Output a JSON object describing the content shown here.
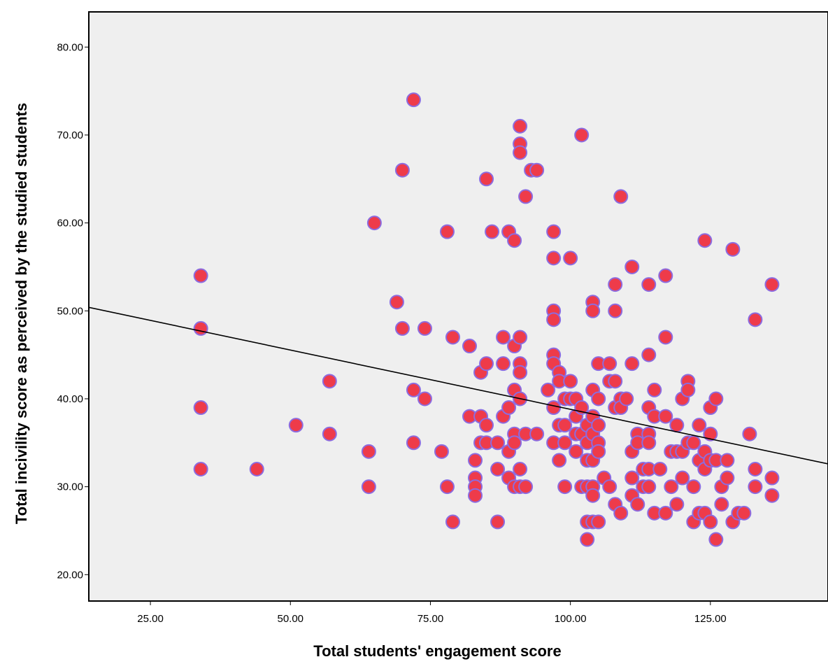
{
  "chart_data": {
    "type": "scatter",
    "title": "",
    "xlabel": "Total students' engagement score",
    "ylabel": "Total incivility score as perceived by the studied students",
    "xlim": [
      14,
      146
    ],
    "ylim": [
      17,
      84
    ],
    "x_ticks": [
      "25.00",
      "50.00",
      "75.00",
      "100.00",
      "125.00"
    ],
    "y_ticks": [
      "20.00",
      "30.00",
      "40.00",
      "50.00",
      "60.00",
      "70.00",
      "80.00"
    ],
    "x_tick_values": [
      25,
      50,
      75,
      100,
      125
    ],
    "y_tick_values": [
      20,
      30,
      40,
      50,
      60,
      70,
      80
    ],
    "grid": false,
    "point_color": "#ee3b4a",
    "point_edge_color": "#8c6ce0",
    "plot_background": "#efefef",
    "fit_line": {
      "x": [
        14,
        146
      ],
      "y": [
        50.4,
        32.6
      ],
      "color": "#000000"
    },
    "points": [
      [
        34,
        54
      ],
      [
        34,
        48
      ],
      [
        34,
        39
      ],
      [
        34,
        32
      ],
      [
        44,
        32
      ],
      [
        51,
        37
      ],
      [
        57,
        42
      ],
      [
        57,
        36
      ],
      [
        64,
        34
      ],
      [
        64,
        30
      ],
      [
        65,
        60
      ],
      [
        69,
        51
      ],
      [
        70,
        66
      ],
      [
        70,
        48
      ],
      [
        72,
        74
      ],
      [
        72,
        41
      ],
      [
        72,
        35
      ],
      [
        74,
        48
      ],
      [
        74,
        40
      ],
      [
        77,
        34
      ],
      [
        78,
        59
      ],
      [
        78,
        30
      ],
      [
        79,
        47
      ],
      [
        79,
        26
      ],
      [
        82,
        46
      ],
      [
        82,
        38
      ],
      [
        83,
        33
      ],
      [
        83,
        31
      ],
      [
        83,
        30
      ],
      [
        83,
        29
      ],
      [
        84,
        43
      ],
      [
        84,
        38
      ],
      [
        84,
        35
      ],
      [
        85,
        65
      ],
      [
        85,
        44
      ],
      [
        85,
        37
      ],
      [
        85,
        35
      ],
      [
        86,
        59
      ],
      [
        87,
        35
      ],
      [
        87,
        32
      ],
      [
        87,
        26
      ],
      [
        88,
        47
      ],
      [
        88,
        44
      ],
      [
        88,
        38
      ],
      [
        89,
        59
      ],
      [
        89,
        39
      ],
      [
        89,
        34
      ],
      [
        89,
        31
      ],
      [
        90,
        58
      ],
      [
        90,
        46
      ],
      [
        90,
        41
      ],
      [
        90,
        36
      ],
      [
        90,
        35
      ],
      [
        90,
        30
      ],
      [
        91,
        71
      ],
      [
        91,
        69
      ],
      [
        91,
        68
      ],
      [
        91,
        47
      ],
      [
        91,
        44
      ],
      [
        91,
        43
      ],
      [
        91,
        40
      ],
      [
        91,
        32
      ],
      [
        91,
        30
      ],
      [
        92,
        63
      ],
      [
        92,
        36
      ],
      [
        92,
        30
      ],
      [
        93,
        66
      ],
      [
        94,
        66
      ],
      [
        94,
        36
      ],
      [
        96,
        41
      ],
      [
        97,
        59
      ],
      [
        97,
        56
      ],
      [
        97,
        50
      ],
      [
        97,
        49
      ],
      [
        97,
        45
      ],
      [
        97,
        44
      ],
      [
        97,
        39
      ],
      [
        97,
        35
      ],
      [
        98,
        43
      ],
      [
        98,
        42
      ],
      [
        98,
        37
      ],
      [
        98,
        33
      ],
      [
        99,
        40
      ],
      [
        99,
        37
      ],
      [
        99,
        35
      ],
      [
        99,
        30
      ],
      [
        100,
        56
      ],
      [
        100,
        42
      ],
      [
        100,
        40
      ],
      [
        101,
        40
      ],
      [
        101,
        38
      ],
      [
        101,
        36
      ],
      [
        101,
        34
      ],
      [
        102,
        70
      ],
      [
        102,
        39
      ],
      [
        102,
        36
      ],
      [
        102,
        30
      ],
      [
        103,
        37
      ],
      [
        103,
        35
      ],
      [
        103,
        33
      ],
      [
        103,
        30
      ],
      [
        103,
        26
      ],
      [
        103,
        24
      ],
      [
        104,
        51
      ],
      [
        104,
        50
      ],
      [
        104,
        41
      ],
      [
        104,
        38
      ],
      [
        104,
        36
      ],
      [
        104,
        33
      ],
      [
        104,
        30
      ],
      [
        104,
        29
      ],
      [
        104,
        26
      ],
      [
        105,
        44
      ],
      [
        105,
        40
      ],
      [
        105,
        37
      ],
      [
        105,
        35
      ],
      [
        105,
        34
      ],
      [
        105,
        26
      ],
      [
        106,
        31
      ],
      [
        107,
        44
      ],
      [
        107,
        42
      ],
      [
        107,
        30
      ],
      [
        108,
        53
      ],
      [
        108,
        50
      ],
      [
        108,
        42
      ],
      [
        108,
        39
      ],
      [
        108,
        28
      ],
      [
        109,
        63
      ],
      [
        109,
        40
      ],
      [
        109,
        39
      ],
      [
        109,
        27
      ],
      [
        110,
        40
      ],
      [
        111,
        55
      ],
      [
        111,
        44
      ],
      [
        111,
        34
      ],
      [
        111,
        31
      ],
      [
        111,
        29
      ],
      [
        112,
        36
      ],
      [
        112,
        35
      ],
      [
        112,
        28
      ],
      [
        113,
        32
      ],
      [
        113,
        30
      ],
      [
        114,
        53
      ],
      [
        114,
        45
      ],
      [
        114,
        39
      ],
      [
        114,
        36
      ],
      [
        114,
        35
      ],
      [
        114,
        32
      ],
      [
        114,
        30
      ],
      [
        115,
        41
      ],
      [
        115,
        38
      ],
      [
        115,
        27
      ],
      [
        116,
        32
      ],
      [
        117,
        54
      ],
      [
        117,
        47
      ],
      [
        117,
        38
      ],
      [
        117,
        27
      ],
      [
        118,
        34
      ],
      [
        118,
        30
      ],
      [
        119,
        37
      ],
      [
        119,
        34
      ],
      [
        119,
        28
      ],
      [
        120,
        40
      ],
      [
        120,
        34
      ],
      [
        120,
        31
      ],
      [
        121,
        42
      ],
      [
        121,
        41
      ],
      [
        121,
        35
      ],
      [
        122,
        35
      ],
      [
        122,
        30
      ],
      [
        122,
        26
      ],
      [
        123,
        37
      ],
      [
        123,
        33
      ],
      [
        123,
        27
      ],
      [
        124,
        58
      ],
      [
        124,
        34
      ],
      [
        124,
        32
      ],
      [
        124,
        27
      ],
      [
        125,
        39
      ],
      [
        125,
        36
      ],
      [
        125,
        33
      ],
      [
        125,
        26
      ],
      [
        126,
        40
      ],
      [
        126,
        33
      ],
      [
        126,
        24
      ],
      [
        127,
        30
      ],
      [
        127,
        28
      ],
      [
        128,
        33
      ],
      [
        128,
        31
      ],
      [
        129,
        57
      ],
      [
        129,
        26
      ],
      [
        130,
        27
      ],
      [
        131,
        27
      ],
      [
        132,
        36
      ],
      [
        133,
        49
      ],
      [
        133,
        32
      ],
      [
        133,
        30
      ],
      [
        136,
        53
      ],
      [
        136,
        31
      ],
      [
        136,
        29
      ]
    ]
  }
}
